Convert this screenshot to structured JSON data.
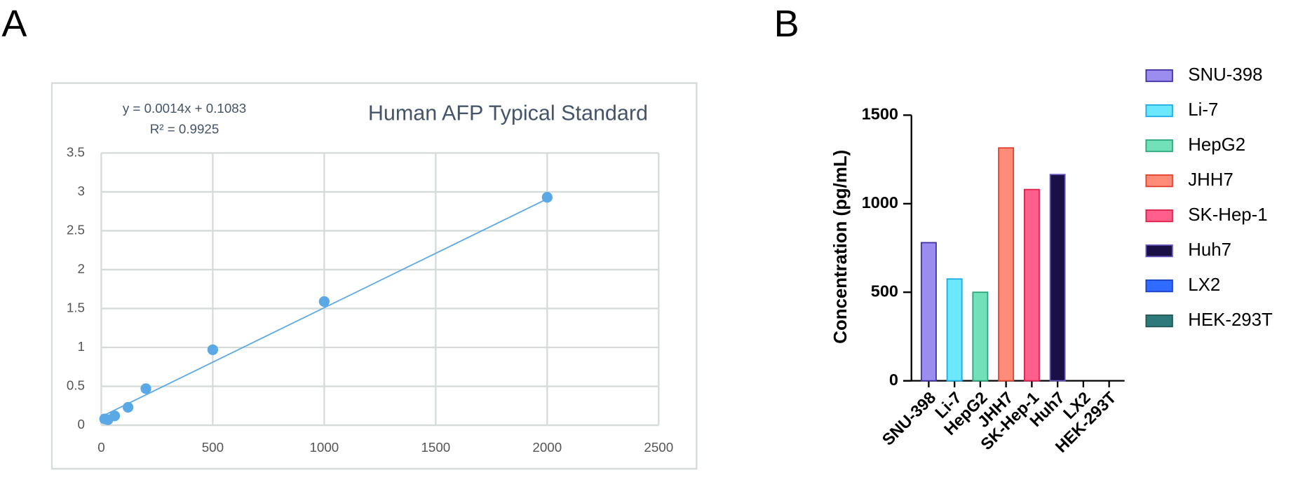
{
  "chart_data": [
    {
      "type": "scatter",
      "panel": "A",
      "title": "Human AFP Typical Standard",
      "annotations": [
        "y = 0.0014x + 0.1083",
        "R² = 0.9925"
      ],
      "x": [
        2000,
        1000,
        500,
        200,
        120,
        60,
        30,
        15
      ],
      "values": [
        2.93,
        1.59,
        0.97,
        0.47,
        0.23,
        0.12,
        0.07,
        0.08
      ],
      "color": "#5aa9e6",
      "trendline": {
        "x": [
          0,
          2000
        ],
        "y": [
          0.11,
          2.91
        ]
      },
      "xlim": [
        0,
        2500
      ],
      "xticks": [
        0,
        500,
        1000,
        1500,
        2000,
        2500
      ],
      "ylim": [
        0,
        3.5
      ],
      "yticks": [
        0,
        0.5,
        1,
        1.5,
        2,
        2.5,
        3,
        3.5
      ],
      "grid": true
    },
    {
      "type": "bar",
      "panel": "B",
      "ylabel": "Concentration (pg/mL)",
      "categories": [
        "SNU-398",
        "Li-7",
        "HepG2",
        "JHH7",
        "SK-Hep-1",
        "Huh7",
        "LX2",
        "HEK-293T"
      ],
      "values": [
        780,
        575,
        500,
        1315,
        1080,
        1165,
        0,
        0
      ],
      "colors": [
        "#9b8cf0",
        "#6be8ff",
        "#72e0b8",
        "#ff8c78",
        "#ff5f8a",
        "#1a1045",
        "#2f6bff",
        "#2e7a7a"
      ],
      "edge_colors": [
        "#3c2fa0",
        "#1aa8e6",
        "#2aa57a",
        "#e0402a",
        "#d9204a",
        "#6a5ac0",
        "#1a40c0",
        "#1e5555"
      ],
      "ylim": [
        0,
        1500
      ],
      "yticks": [
        0,
        500,
        1000,
        1500
      ],
      "grid": false,
      "legend": "right"
    }
  ]
}
